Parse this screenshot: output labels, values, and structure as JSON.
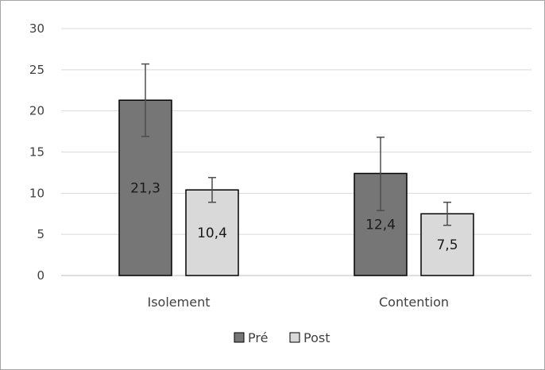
{
  "chart_data": {
    "type": "bar",
    "categories": [
      "Isolement",
      "Contention"
    ],
    "series": [
      {
        "name": "Pré",
        "values": [
          21.3,
          12.4
        ],
        "error_low": [
          16.9,
          7.9
        ],
        "error_high": [
          25.7,
          16.8
        ],
        "data_labels": [
          "21,3",
          "12,4"
        ],
        "color": "#767676"
      },
      {
        "name": "Post",
        "values": [
          10.4,
          7.5
        ],
        "error_low": [
          8.9,
          6.1
        ],
        "error_high": [
          11.9,
          8.9
        ],
        "data_labels": [
          "10,4",
          "7,5"
        ],
        "color": "#d9d9d9"
      }
    ],
    "ylim": [
      0,
      30
    ],
    "yticks": [
      "0",
      "5",
      "10",
      "15",
      "20",
      "25",
      "30"
    ],
    "grid": true,
    "legend_position": "bottom",
    "title": "",
    "xlabel": "",
    "ylabel": ""
  },
  "colors": {
    "gridline": "#d9d9d9",
    "axis": "#bfbfbf",
    "bar_border": "#000000",
    "error_bar": "#4d4d4d"
  }
}
